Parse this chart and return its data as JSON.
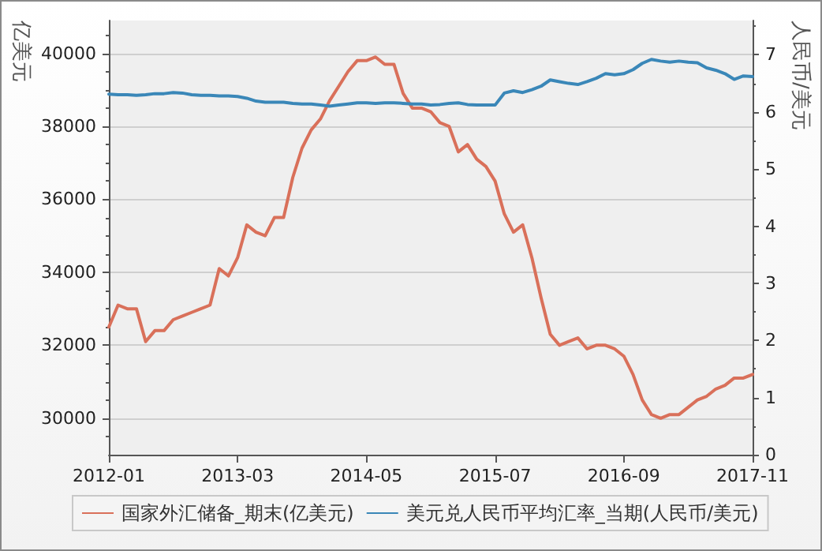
{
  "chart_data": {
    "type": "line",
    "ylabel": "亿美元",
    "y2label": "人民币/美元",
    "x": [
      "2012-01",
      "2012-02",
      "2012-03",
      "2012-04",
      "2012-05",
      "2012-06",
      "2012-07",
      "2012-08",
      "2012-09",
      "2012-10",
      "2012-11",
      "2012-12",
      "2013-01",
      "2013-02",
      "2013-03",
      "2013-04",
      "2013-05",
      "2013-06",
      "2013-07",
      "2013-08",
      "2013-09",
      "2013-10",
      "2013-11",
      "2013-12",
      "2014-01",
      "2014-02",
      "2014-03",
      "2014-04",
      "2014-05",
      "2014-06",
      "2014-07",
      "2014-08",
      "2014-09",
      "2014-10",
      "2014-11",
      "2014-12",
      "2015-01",
      "2015-02",
      "2015-03",
      "2015-04",
      "2015-05",
      "2015-06",
      "2015-07",
      "2015-08",
      "2015-09",
      "2015-10",
      "2015-11",
      "2015-12",
      "2016-01",
      "2016-02",
      "2016-03",
      "2016-04",
      "2016-05",
      "2016-06",
      "2016-07",
      "2016-08",
      "2016-09",
      "2016-10",
      "2016-11",
      "2016-12",
      "2017-01",
      "2017-02",
      "2017-03",
      "2017-04",
      "2017-05",
      "2017-06",
      "2017-07",
      "2017-08",
      "2017-09",
      "2017-10",
      "2017-11"
    ],
    "series": [
      {
        "name": "国家外汇储备_期末(亿美元)",
        "color": "#d9705a",
        "values": [
          32500,
          33100,
          33000,
          33000,
          32100,
          32400,
          32400,
          32700,
          32800,
          32900,
          33000,
          33100,
          34100,
          33900,
          34400,
          35300,
          35100,
          35000,
          35500,
          35500,
          36600,
          37400,
          37900,
          38200,
          38700,
          39100,
          39500,
          39800,
          39800,
          39900,
          39700,
          39700,
          38900,
          38500,
          38500,
          38400,
          38100,
          38000,
          37300,
          37500,
          37100,
          36900,
          36500,
          35600,
          35100,
          35300,
          34400,
          33300,
          32300,
          32000,
          32100,
          32200,
          31900,
          32000,
          32000,
          31900,
          31700,
          31200,
          30500,
          30100,
          30000,
          30100,
          30100,
          30300,
          30500,
          30600,
          30800,
          30900,
          31100,
          31100,
          31200
        ]
      },
      {
        "name": "美元兑人民币平均汇率_当期(人民币/美元)",
        "color": "#3a87b8",
        "axis": "y2",
        "values": [
          6.31,
          6.3,
          6.3,
          6.29,
          6.3,
          6.32,
          6.32,
          6.34,
          6.33,
          6.3,
          6.29,
          6.29,
          6.28,
          6.28,
          6.27,
          6.24,
          6.19,
          6.17,
          6.17,
          6.17,
          6.15,
          6.14,
          6.14,
          6.12,
          6.1,
          6.12,
          6.14,
          6.16,
          6.16,
          6.15,
          6.16,
          6.16,
          6.15,
          6.14,
          6.14,
          6.12,
          6.13,
          6.15,
          6.16,
          6.13,
          6.12,
          6.12,
          6.12,
          6.33,
          6.37,
          6.34,
          6.39,
          6.45,
          6.56,
          6.53,
          6.5,
          6.48,
          6.53,
          6.59,
          6.67,
          6.65,
          6.67,
          6.74,
          6.85,
          6.92,
          6.89,
          6.87,
          6.89,
          6.87,
          6.86,
          6.77,
          6.73,
          6.67,
          6.57,
          6.63,
          6.62
        ]
      }
    ],
    "xlim": [
      "2012-01",
      "2017-11"
    ],
    "xticks": [
      "2012-01",
      "2013-03",
      "2014-05",
      "2015-07",
      "2016-09",
      "2017-11"
    ],
    "ylim": [
      29000,
      40900
    ],
    "yticks": [
      30000,
      32000,
      34000,
      36000,
      38000,
      40000
    ],
    "y2lim": [
      0,
      7.6
    ],
    "y2ticks": [
      0,
      1,
      2,
      3,
      4,
      5,
      6,
      7
    ],
    "grid": "y",
    "legend": "bottom",
    "marker": "none",
    "line_style": "solid"
  }
}
